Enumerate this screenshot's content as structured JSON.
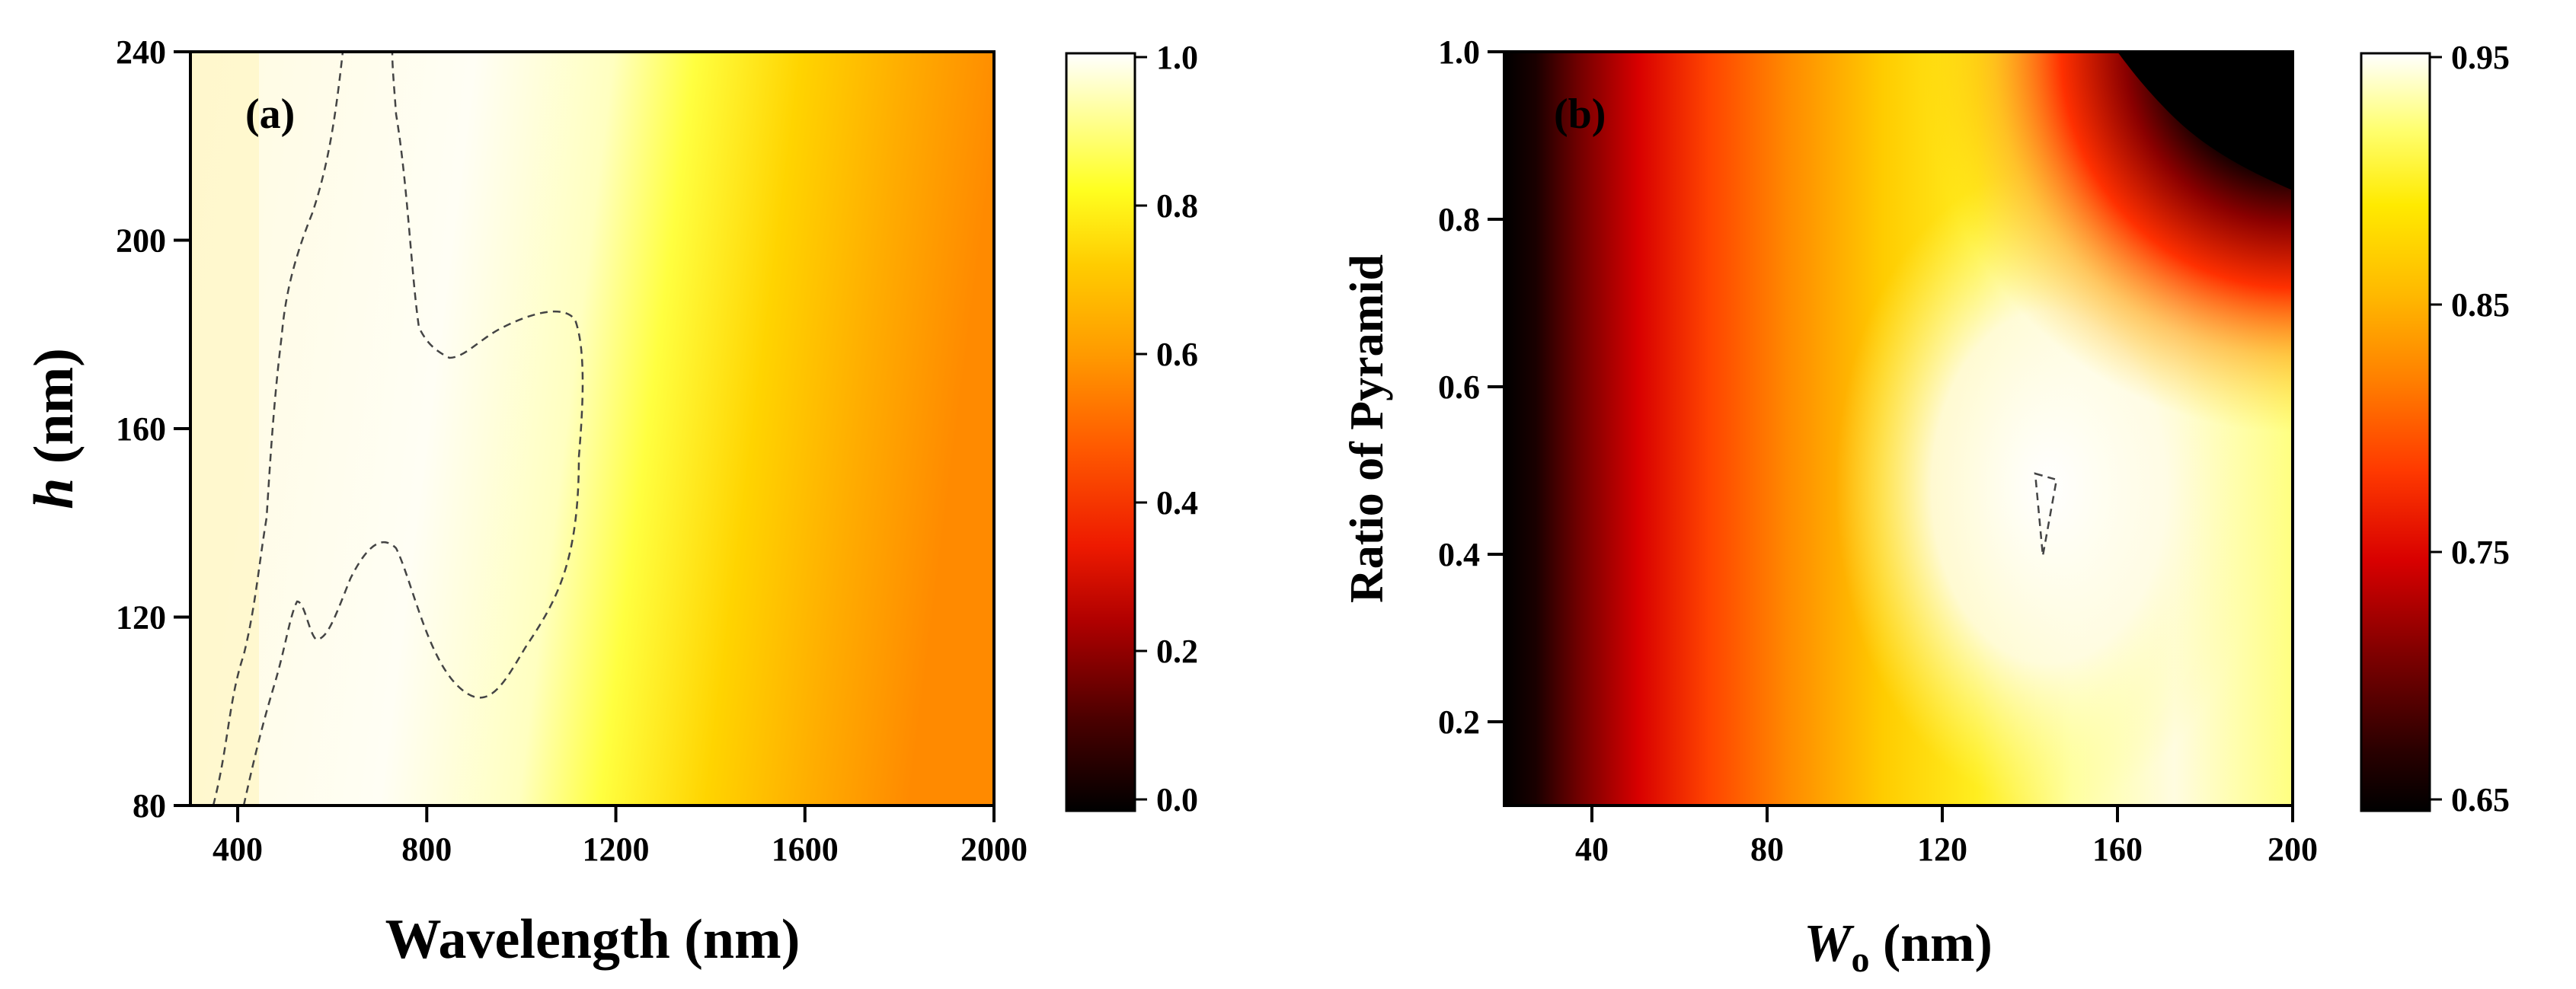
{
  "chart_data": [
    {
      "type": "heatmap",
      "panel_label": "(a)",
      "xlabel": "Wavelength (nm)",
      "ylabel_italic": "h",
      "ylabel_rest": " (nm)",
      "xlim": [
        300,
        2000
      ],
      "ylim": [
        80,
        240
      ],
      "xticks": [
        400,
        800,
        1200,
        1600,
        2000
      ],
      "yticks": [
        80,
        120,
        160,
        200,
        240
      ],
      "colorbar": {
        "range": [
          0.0,
          1.0
        ],
        "ticks": [
          "0.0",
          "0.2",
          "0.4",
          "0.6",
          "0.8",
          "1.0"
        ],
        "colormap": "black-red-orange-yellow-white"
      },
      "contour_level": 0.95,
      "description_of_field": "Absorption near 1.0 for wavelengths 300-1100 nm, decreasing toward ~0.45 at 2000 nm; contour region of values above 0.95 between ~450-1100 nm"
    },
    {
      "type": "heatmap",
      "panel_label": "(b)",
      "xlabel_italic": "W",
      "xlabel_sub": "o",
      "xlabel_rest": " (nm)",
      "ylabel": "Ratio of Pyramid",
      "xlim": [
        20,
        200
      ],
      "ylim": [
        0.1,
        1.0
      ],
      "xticks": [
        40,
        80,
        120,
        160,
        200
      ],
      "yticks": [
        0.2,
        0.4,
        0.6,
        0.8,
        1.0
      ],
      "ytick_labels": [
        "0.2",
        "0.4",
        "0.6",
        "0.8",
        "1.0"
      ],
      "colorbar": {
        "range": [
          0.65,
          0.95
        ],
        "ticks": [
          "0.65",
          "0.75",
          "0.85",
          "0.95"
        ],
        "colormap": "black-red-orange-yellow-white"
      },
      "peak": {
        "x": 140,
        "y": 0.45,
        "value": 0.95
      },
      "description_of_field": "Value near 0.65 at W_o=20 nm rising to ~0.95 near W_o=140 nm, ratio 0.45; decreasing to ~0.65 at top-right corner"
    }
  ]
}
